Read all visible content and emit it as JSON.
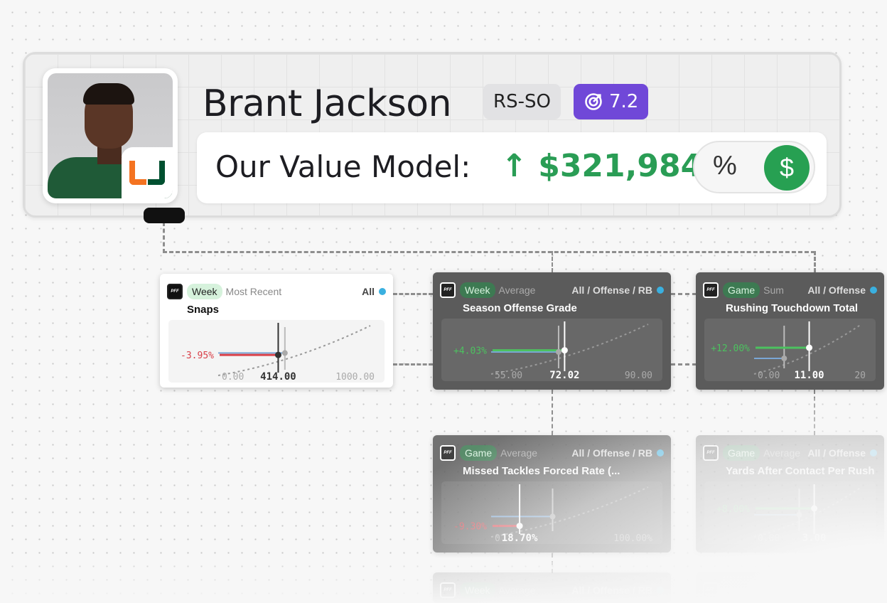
{
  "player": {
    "name": "Brant Jackson",
    "class": "RS-SO",
    "score": "7.2",
    "score_icon": "target-icon",
    "team_logo": "U"
  },
  "value_model": {
    "label": "Our Value Model:",
    "direction": "up",
    "arrow": "↑",
    "value": "$321,984",
    "toggle": {
      "percent": "%",
      "dollar": "$",
      "selected": "dollar"
    }
  },
  "colors": {
    "accent_green": "#27a052",
    "score_purple": "#7048d8",
    "negative": "#d9414a",
    "positive": "#4cc25f",
    "reference": "#7aa7d6"
  },
  "cards": [
    {
      "period": "Week",
      "agg": "Most Recent",
      "scope": "All",
      "title": "Snaps",
      "delta": "-3.95%",
      "sign": "neg",
      "min": "0.00",
      "value": "414.00",
      "max": "1000.00",
      "pos": 0.414,
      "ref": 0.46,
      "theme": "light"
    },
    {
      "period": "Week",
      "agg": "Average",
      "scope": "All / Offense / RB",
      "title": "Season Offense Grade",
      "delta": "+4.03%",
      "sign": "pos",
      "min": "55.00",
      "value": "72.02",
      "max": "90.00",
      "pos": 0.49,
      "ref": 0.45,
      "theme": "dark"
    },
    {
      "period": "Game",
      "agg": "Sum",
      "scope": "All / Offense",
      "title": "Rushing Touchdown Total",
      "delta": "+12.00%",
      "sign": "pos",
      "min": "0.00",
      "value": "11.00",
      "max": "20",
      "pos": 0.55,
      "ref": 0.3,
      "theme": "dark"
    },
    {
      "period": "Game",
      "agg": "Average",
      "scope": "All / Offense / RB",
      "title": "Missed Tackles Forced Rate (...",
      "delta": "-9.30%",
      "sign": "neg",
      "min": "0",
      "value": "18.70%",
      "max": "100.00%",
      "pos": 0.19,
      "ref": 0.41,
      "theme": "dark"
    },
    {
      "period": "Game",
      "agg": "Average",
      "scope": "All / Offense",
      "title": "Yards After Contact Per Rush",
      "delta": "+8.00%",
      "sign": "pos",
      "min": "0.00",
      "value": "3.00",
      "max": "",
      "pos": 0.6,
      "ref": 0.45,
      "theme": "dark"
    },
    {
      "period": "Week",
      "agg": "Average",
      "scope": "All / Offense / RB",
      "title": "",
      "theme": "dark"
    },
    {
      "period": "",
      "agg": "",
      "scope": "",
      "title": "",
      "theme": "dark"
    }
  ]
}
